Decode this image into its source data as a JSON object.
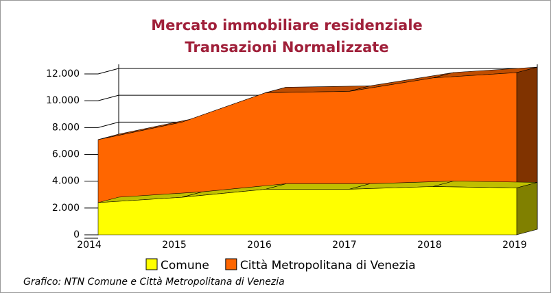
{
  "chart_data": {
    "type": "area3d",
    "title": "Mercato immobiliare residenziale",
    "subtitle": "Transazioni Normalizzate",
    "categories": [
      "2014",
      "2015",
      "2016",
      "2017",
      "2018",
      "2019"
    ],
    "stacked": true,
    "series": [
      {
        "name": "Comune",
        "color": "#ffff00",
        "values": [
          2400,
          2800,
          3400,
          3400,
          3600,
          3500
        ]
      },
      {
        "name": "Città Metropolitana di Venezia",
        "color": "#ff6600",
        "values": [
          4700,
          5600,
          7200,
          7300,
          8100,
          8600
        ]
      }
    ],
    "ylim": [
      0,
      12000
    ],
    "yticks": [
      0,
      {
        "value": 2000,
        "label": "2.000"
      },
      {
        "value": 4000,
        "label": "4.000"
      },
      {
        "value": 6000,
        "label": "6.000"
      },
      {
        "value": 8000,
        "label": "8.000"
      },
      {
        "value": 10000,
        "label": "10.000"
      },
      {
        "value": 12000,
        "label": "12.000"
      }
    ],
    "grid": true,
    "caption": "Grafico: NTN Comune e Città Metropolitana di Venezia"
  }
}
